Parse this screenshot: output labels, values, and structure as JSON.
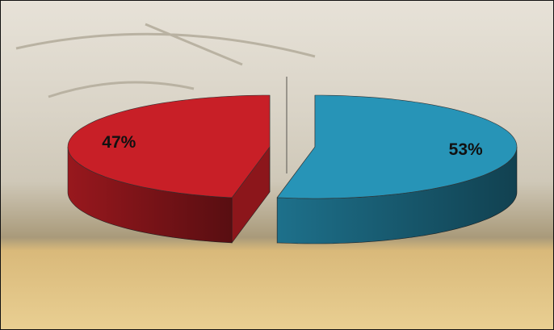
{
  "chart_data": {
    "type": "pie",
    "values": [
      47,
      53
    ],
    "value_labels": [
      "47%",
      "53%"
    ],
    "colors": [
      "#c81f27",
      "#2794b7"
    ],
    "direction": "counterclockwise-first"
  }
}
